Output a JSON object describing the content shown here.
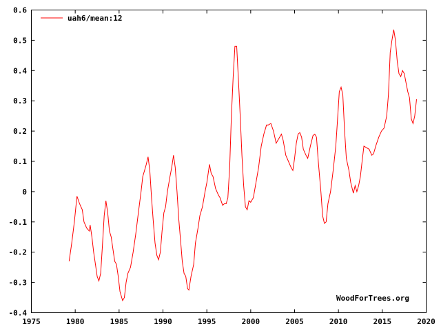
{
  "chart_data": {
    "type": "line",
    "title": "",
    "xlabel": "",
    "ylabel": "",
    "xlim": [
      1975,
      2020
    ],
    "ylim": [
      -0.4,
      0.6
    ],
    "xticks": [
      "1975",
      "1980",
      "1985",
      "1990",
      "1995",
      "2000",
      "2005",
      "2010",
      "2015",
      "2020"
    ],
    "yticks": [
      "-0.4",
      "-0.3",
      "-0.2",
      "-0.1",
      "0",
      "0.1",
      "0.2",
      "0.3",
      "0.4",
      "0.5",
      "0.6"
    ],
    "grid": false,
    "legend_position": "top-left",
    "watermark": "WoodForTrees.org",
    "colors": {
      "series": "#ff0000",
      "axis": "#000000"
    },
    "series": [
      {
        "name": "uah6/mean:12",
        "x": [
          1979.3,
          1979.6,
          1979.9,
          1980.2,
          1980.5,
          1980.8,
          1981.0,
          1981.3,
          1981.6,
          1981.7,
          1981.9,
          1982.1,
          1982.3,
          1982.5,
          1982.7,
          1982.9,
          1983.1,
          1983.3,
          1983.5,
          1983.7,
          1983.9,
          1984.1,
          1984.3,
          1984.5,
          1984.7,
          1984.9,
          1985.1,
          1985.4,
          1985.6,
          1985.8,
          1986.0,
          1986.3,
          1986.6,
          1986.9,
          1987.2,
          1987.5,
          1987.7,
          1987.9,
          1988.1,
          1988.3,
          1988.5,
          1988.7,
          1988.9,
          1989.1,
          1989.3,
          1989.5,
          1989.7,
          1989.9,
          1990.1,
          1990.3,
          1990.5,
          1990.8,
          1991.0,
          1991.2,
          1991.4,
          1991.6,
          1991.8,
          1992.0,
          1992.2,
          1992.4,
          1992.6,
          1992.8,
          1992.95,
          1993.2,
          1993.5,
          1993.7,
          1994.0,
          1994.2,
          1994.5,
          1994.8,
          1995.0,
          1995.3,
          1995.5,
          1995.7,
          1996.0,
          1996.3,
          1996.5,
          1996.8,
          1997.0,
          1997.2,
          1997.4,
          1997.6,
          1997.8,
          1998.0,
          1998.2,
          1998.4,
          1998.6,
          1998.8,
          1999.0,
          1999.2,
          1999.4,
          1999.6,
          1999.8,
          2000.0,
          2000.3,
          2000.6,
          2000.9,
          2001.2,
          2001.5,
          2001.8,
          2002.0,
          2002.3,
          2002.6,
          2002.9,
          2003.1,
          2003.3,
          2003.5,
          2003.7,
          2004.0,
          2004.3,
          2004.6,
          2004.8,
          2005.0,
          2005.2,
          2005.4,
          2005.6,
          2005.8,
          2006.0,
          2006.3,
          2006.5,
          2006.8,
          2007.1,
          2007.3,
          2007.5,
          2007.7,
          2008.0,
          2008.2,
          2008.4,
          2008.6,
          2008.8,
          2009.1,
          2009.4,
          2009.7,
          2009.9,
          2010.1,
          2010.3,
          2010.5,
          2010.7,
          2010.9,
          2011.2,
          2011.4,
          2011.7,
          2011.9,
          2012.1,
          2012.3,
          2012.5,
          2012.7,
          2012.9,
          2013.2,
          2013.5,
          2013.8,
          2014.0,
          2014.3,
          2014.6,
          2014.9,
          2015.2,
          2015.5,
          2015.7,
          2015.9,
          2016.1,
          2016.3,
          2016.5,
          2016.7,
          2016.9,
          2017.1,
          2017.3,
          2017.5,
          2017.7,
          2017.9,
          2018.1,
          2018.3,
          2018.5,
          2018.7,
          2018.9
        ],
        "y": [
          -0.23,
          -0.17,
          -0.1,
          -0.015,
          -0.04,
          -0.06,
          -0.1,
          -0.12,
          -0.13,
          -0.11,
          -0.15,
          -0.2,
          -0.24,
          -0.28,
          -0.295,
          -0.27,
          -0.18,
          -0.08,
          -0.03,
          -0.07,
          -0.13,
          -0.15,
          -0.19,
          -0.23,
          -0.24,
          -0.28,
          -0.33,
          -0.36,
          -0.35,
          -0.3,
          -0.27,
          -0.25,
          -0.2,
          -0.14,
          -0.07,
          0.0,
          0.05,
          0.07,
          0.09,
          0.115,
          0.07,
          -0.02,
          -0.1,
          -0.17,
          -0.21,
          -0.225,
          -0.2,
          -0.13,
          -0.07,
          -0.05,
          0.0,
          0.05,
          0.08,
          0.12,
          0.08,
          0.0,
          -0.09,
          -0.16,
          -0.23,
          -0.27,
          -0.28,
          -0.32,
          -0.325,
          -0.28,
          -0.24,
          -0.17,
          -0.12,
          -0.08,
          -0.05,
          0.0,
          0.03,
          0.09,
          0.06,
          0.05,
          0.01,
          -0.01,
          -0.02,
          -0.045,
          -0.04,
          -0.04,
          -0.02,
          0.08,
          0.25,
          0.38,
          0.48,
          0.48,
          0.37,
          0.25,
          0.12,
          0.02,
          -0.05,
          -0.06,
          -0.03,
          -0.035,
          -0.02,
          0.03,
          0.08,
          0.15,
          0.19,
          0.22,
          0.22,
          0.225,
          0.2,
          0.16,
          0.17,
          0.18,
          0.19,
          0.17,
          0.12,
          0.1,
          0.08,
          0.07,
          0.11,
          0.16,
          0.19,
          0.195,
          0.18,
          0.14,
          0.12,
          0.11,
          0.15,
          0.185,
          0.19,
          0.18,
          0.1,
          0.0,
          -0.08,
          -0.105,
          -0.1,
          -0.04,
          0.0,
          0.07,
          0.15,
          0.24,
          0.33,
          0.345,
          0.32,
          0.2,
          0.11,
          0.07,
          0.03,
          -0.005,
          0.02,
          0.0,
          0.02,
          0.05,
          0.1,
          0.15,
          0.145,
          0.14,
          0.12,
          0.125,
          0.155,
          0.18,
          0.2,
          0.21,
          0.25,
          0.32,
          0.46,
          0.5,
          0.535,
          0.5,
          0.43,
          0.39,
          0.38,
          0.4,
          0.39,
          0.36,
          0.33,
          0.31,
          0.24,
          0.225,
          0.25,
          0.305
        ]
      }
    ]
  }
}
